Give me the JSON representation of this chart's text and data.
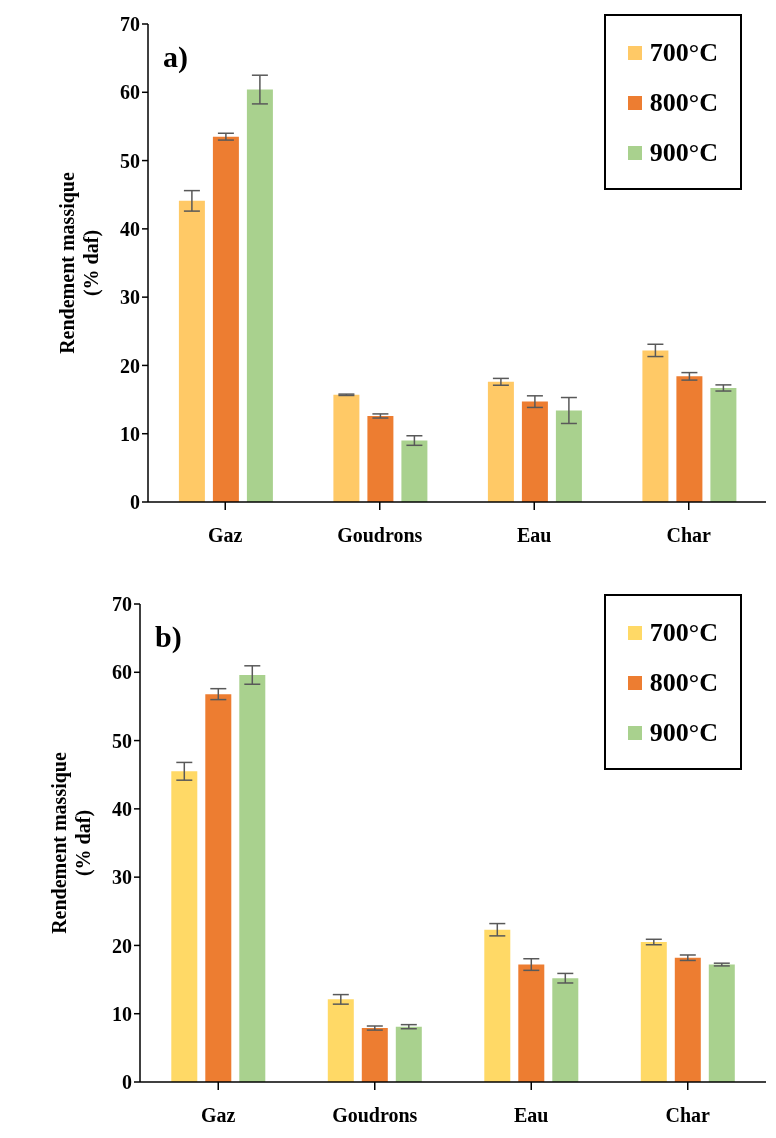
{
  "chart_data": [
    {
      "type": "bar",
      "title": "a)",
      "ylabel": "Rendement massique\n(% daf)",
      "categories": [
        "Gaz",
        "Goudrons",
        "Eau",
        "Char"
      ],
      "ylim": [
        0,
        70
      ],
      "yticks": [
        0,
        10,
        20,
        30,
        40,
        50,
        60,
        70
      ],
      "grid": false,
      "legend": "top right",
      "series": [
        {
          "name": "700°C",
          "color": "#ffc966",
          "values": [
            44.1,
            15.7,
            17.6,
            22.2
          ],
          "errors": [
            1.5,
            0.1,
            0.5,
            0.9
          ]
        },
        {
          "name": "800°C",
          "color": "#ed7d31",
          "values": [
            53.5,
            12.6,
            14.7,
            18.4
          ],
          "errors": [
            0.5,
            0.3,
            0.85,
            0.55
          ]
        },
        {
          "name": "900°C",
          "color": "#a9d18e",
          "values": [
            60.4,
            9.0,
            13.4,
            16.7
          ],
          "errors": [
            2.1,
            0.7,
            1.9,
            0.45
          ]
        }
      ]
    },
    {
      "type": "bar",
      "title": "b)",
      "ylabel": "Rendement massique\n(% daf)",
      "categories": [
        "Gaz",
        "Goudrons",
        "Eau",
        "Char"
      ],
      "ylim": [
        0,
        70
      ],
      "yticks": [
        0,
        10,
        20,
        30,
        40,
        50,
        60,
        70
      ],
      "grid": false,
      "legend": "top right",
      "series": [
        {
          "name": "700°C",
          "color": "#ffd966",
          "values": [
            45.5,
            12.1,
            22.3,
            20.5
          ],
          "errors": [
            1.3,
            0.7,
            0.9,
            0.4
          ]
        },
        {
          "name": "800°C",
          "color": "#ed7d31",
          "values": [
            56.8,
            7.9,
            17.2,
            18.2
          ],
          "errors": [
            0.8,
            0.3,
            0.85,
            0.4
          ]
        },
        {
          "name": "900°C",
          "color": "#a9d18e",
          "values": [
            59.6,
            8.1,
            15.2,
            17.2
          ],
          "errors": [
            1.35,
            0.3,
            0.7,
            0.2
          ]
        }
      ]
    }
  ]
}
